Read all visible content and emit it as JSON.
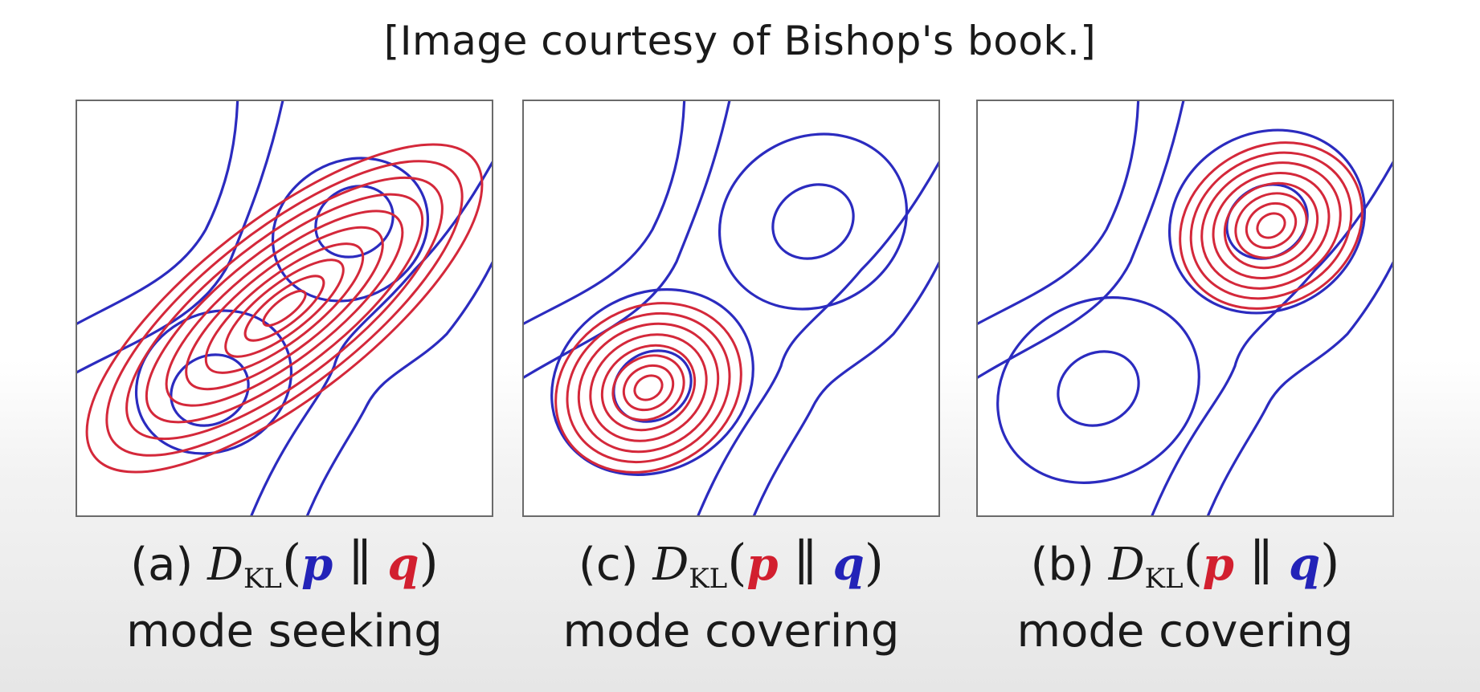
{
  "caption": "[Image courtesy of Bishop's book.]",
  "colors": {
    "p_contours": "#2b2bbf",
    "q_contours": "#d4283a"
  },
  "panels": [
    {
      "id": "a",
      "letter": "(a)",
      "dkl_base": "D",
      "dkl_sub": "KL",
      "first": "p",
      "second": "q",
      "first_color": "blue",
      "second_color": "red",
      "description": "mode seeking"
    },
    {
      "id": "c",
      "letter": "(c)",
      "dkl_base": "D",
      "dkl_sub": "KL",
      "first": "p",
      "second": "q",
      "first_color": "red",
      "second_color": "blue",
      "description": "mode covering"
    },
    {
      "id": "b",
      "letter": "(b)",
      "dkl_base": "D",
      "dkl_sub": "KL",
      "first": "p",
      "second": "q",
      "first_color": "red",
      "second_color": "blue",
      "description": "mode covering"
    }
  ]
}
